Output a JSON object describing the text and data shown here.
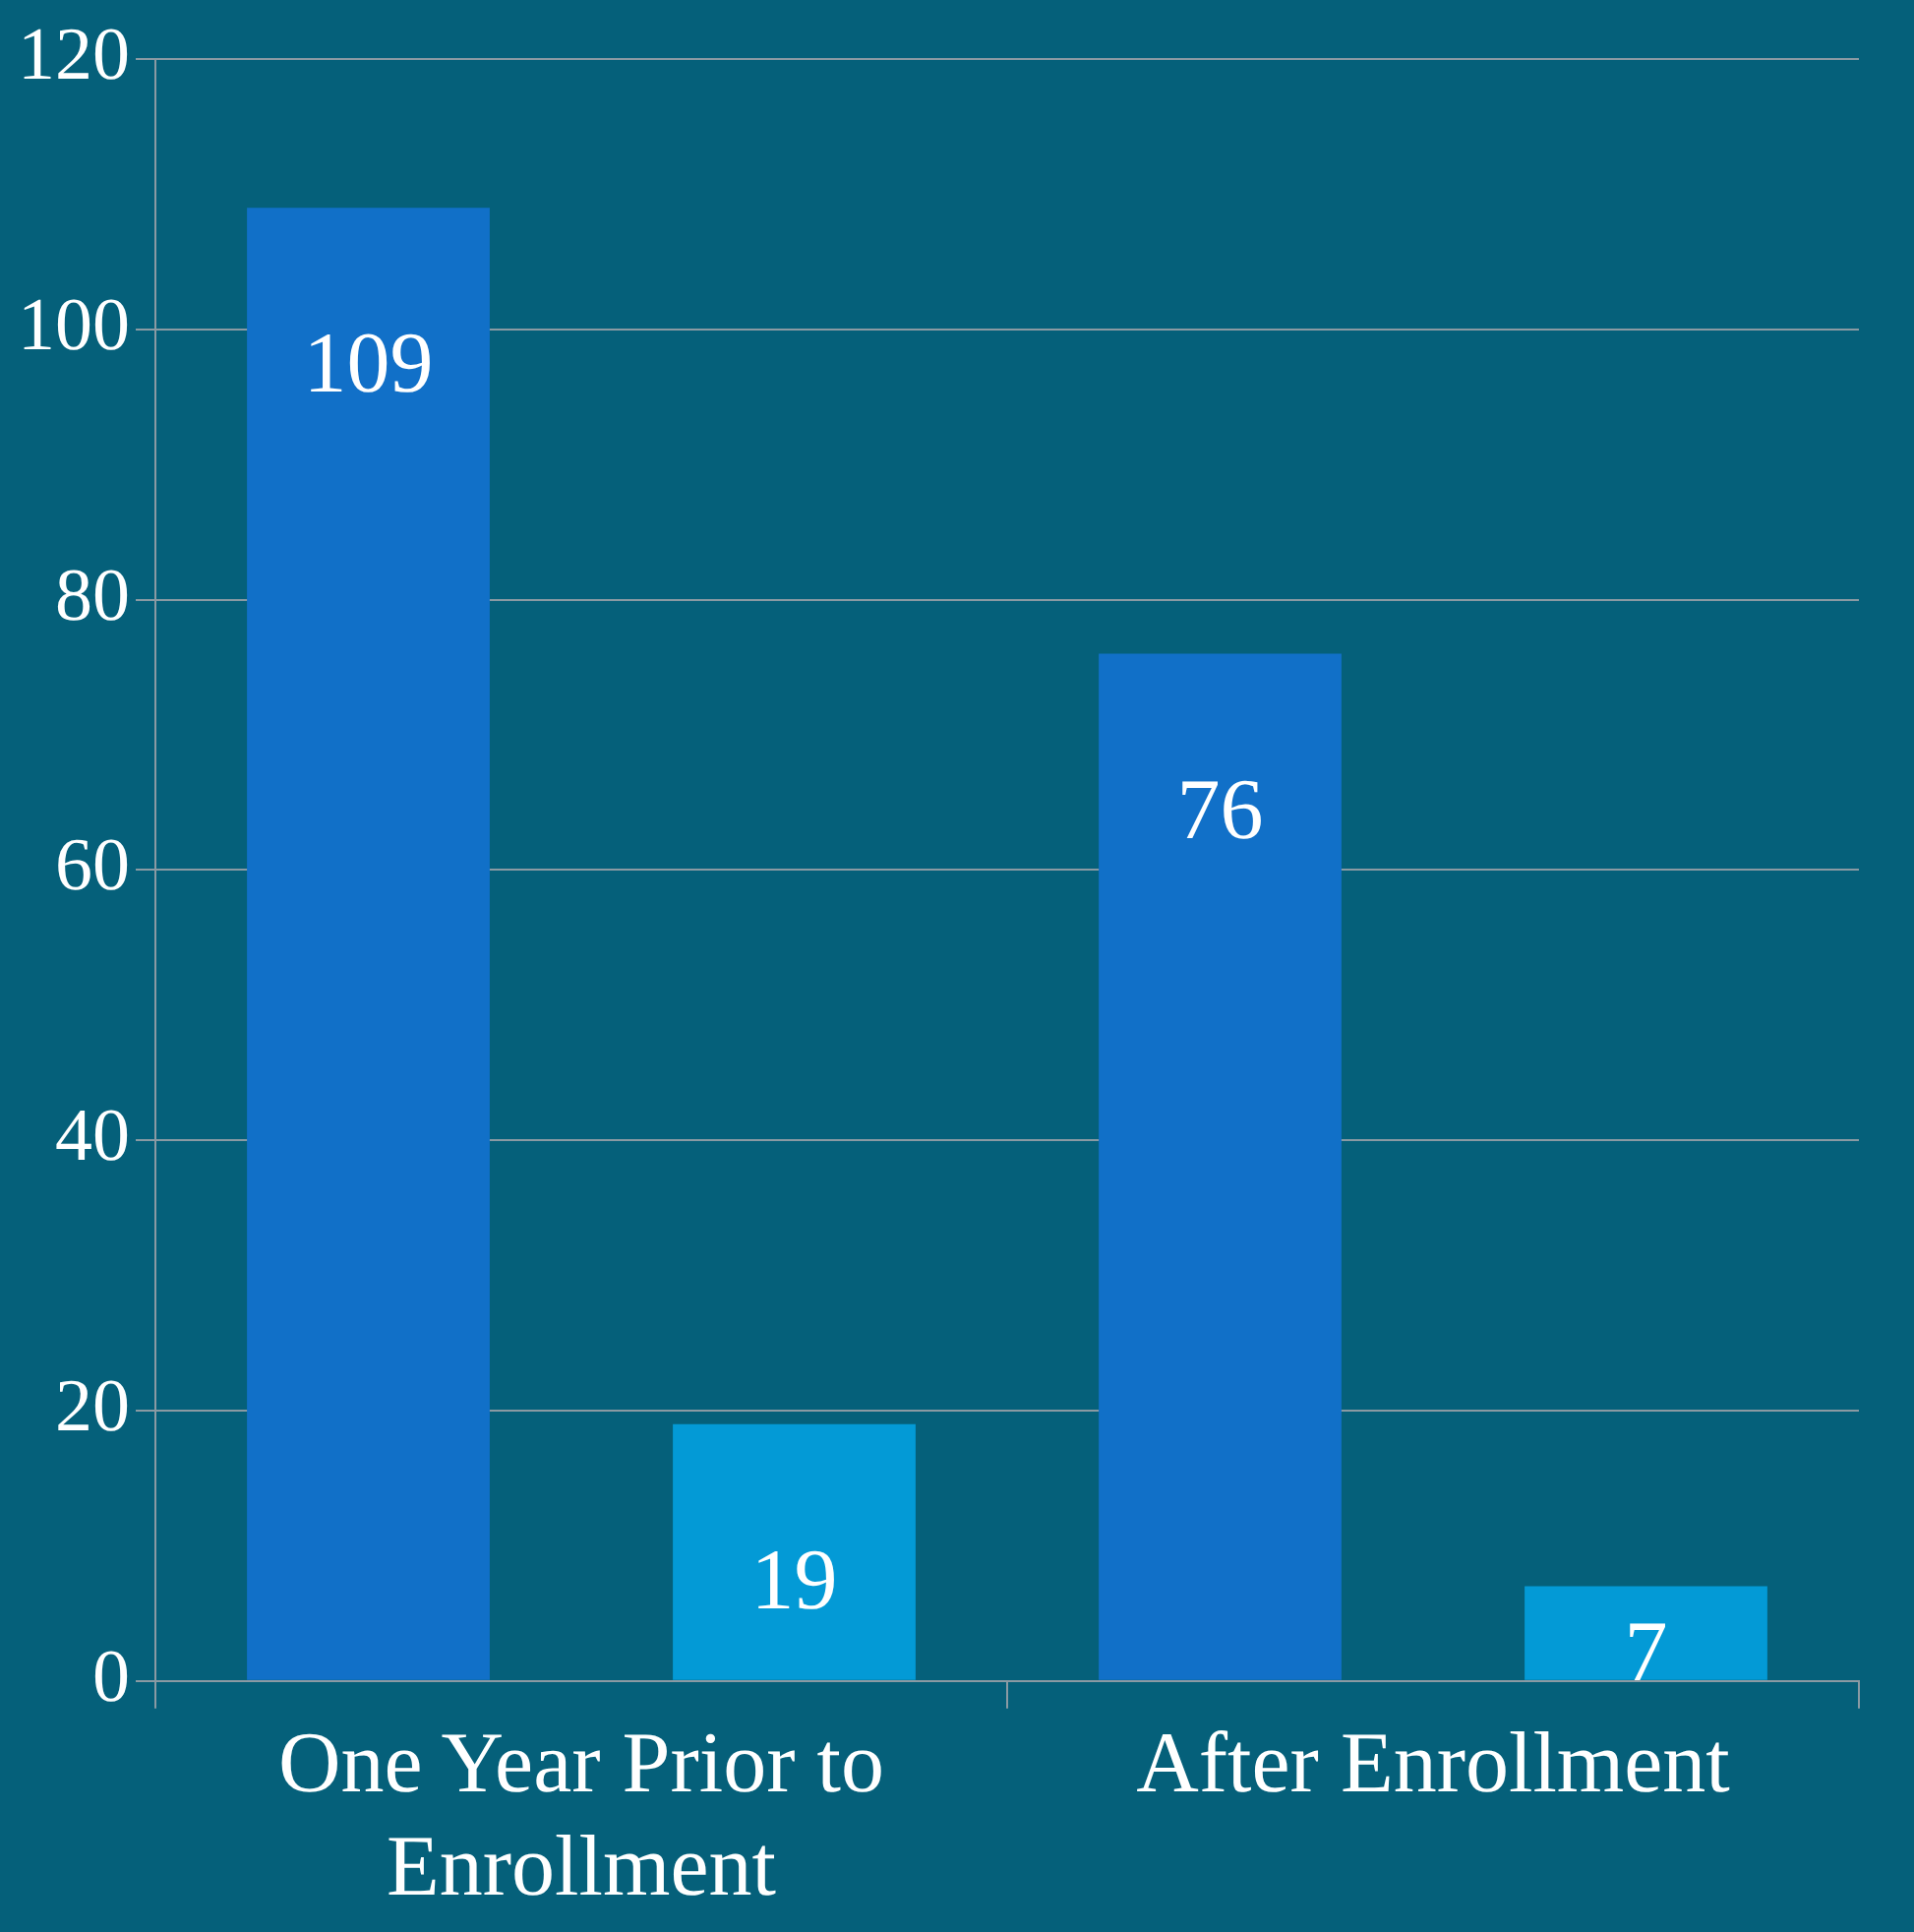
{
  "chart_data": {
    "type": "bar",
    "categories": [
      "One Year Prior to Enrollment",
      "After Enrollment"
    ],
    "series": [
      {
        "color": "#1170c8",
        "values": [
          109,
          76
        ]
      },
      {
        "color": "#039ad6",
        "values": [
          19,
          7
        ]
      }
    ],
    "ylim": [
      0,
      120
    ],
    "yticks": [
      0,
      20,
      40,
      60,
      80,
      100,
      120
    ],
    "grid": "y",
    "data_labels": true
  }
}
